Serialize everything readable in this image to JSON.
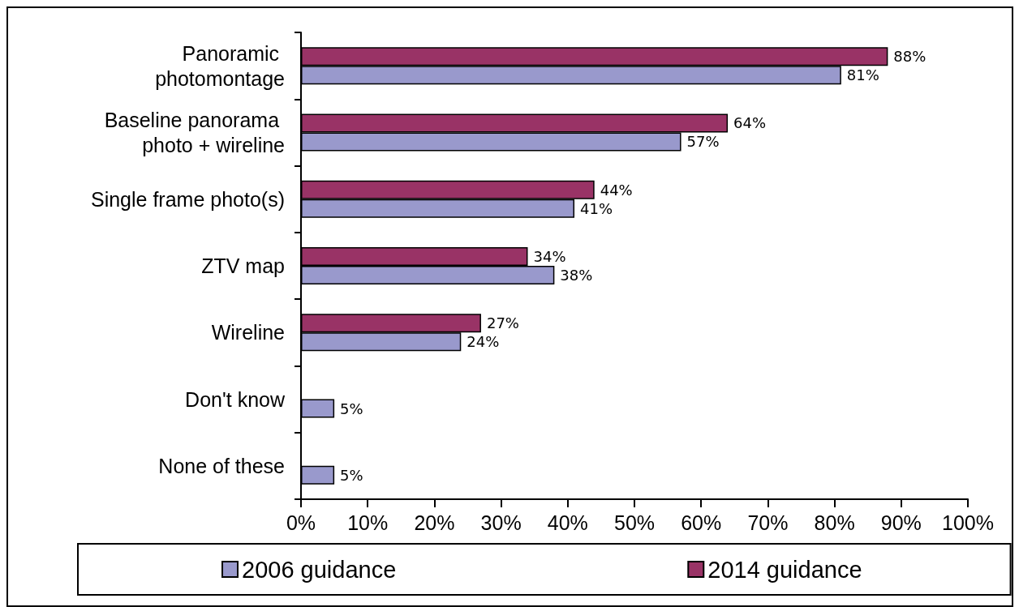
{
  "chart_data": {
    "type": "bar",
    "orientation": "horizontal",
    "categories": [
      "Panoramic photomontage",
      "Baseline panorama photo + wireline",
      "Single frame photo(s)",
      "ZTV map",
      "Wireline",
      "Don't know",
      "None of these"
    ],
    "series": [
      {
        "name": "2006 guidance",
        "color": "#9999cc",
        "values": [
          81,
          57,
          41,
          38,
          24,
          5,
          5
        ],
        "value_labels": [
          "81%",
          "57%",
          "41%",
          "38%",
          "24%",
          "5%",
          "5%"
        ]
      },
      {
        "name": "2014 guidance",
        "color": "#993366",
        "values": [
          88,
          64,
          44,
          34,
          27,
          null,
          null
        ],
        "value_labels": [
          "88%",
          "64%",
          "44%",
          "34%",
          "27%",
          null,
          null
        ]
      }
    ],
    "xlim": [
      0,
      100
    ],
    "xticks": [
      {
        "value": 0,
        "label": "0%"
      },
      {
        "value": 10,
        "label": "10%"
      },
      {
        "value": 20,
        "label": "20%"
      },
      {
        "value": 30,
        "label": "30%"
      },
      {
        "value": 40,
        "label": "40%"
      },
      {
        "value": 50,
        "label": "50%"
      },
      {
        "value": 60,
        "label": "60%"
      },
      {
        "value": 70,
        "label": "70%"
      },
      {
        "value": 80,
        "label": "80%"
      },
      {
        "value": 90,
        "label": "90%"
      },
      {
        "value": 100,
        "label": "100%"
      }
    ],
    "legend": "bottom"
  }
}
